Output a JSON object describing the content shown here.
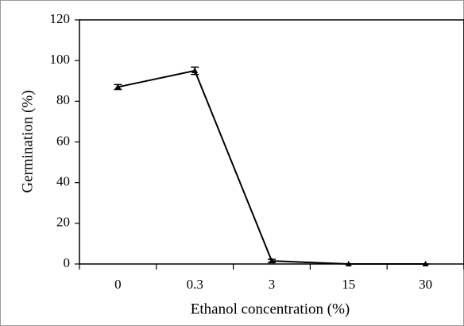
{
  "chart_data": {
    "type": "line",
    "x_label": "Ethanol concentration (%)",
    "y_label": "Germination (%)",
    "categories": [
      "0",
      "0.3",
      "3",
      "15",
      "30"
    ],
    "series": [
      {
        "color": "#000000",
        "values": [
          87,
          95,
          1.5,
          0,
          0
        ],
        "errors": [
          1.2,
          1.8,
          0.8,
          0,
          0
        ]
      }
    ],
    "ylim": [
      0,
      120
    ],
    "yticks": [
      0,
      20,
      40,
      60,
      80,
      100,
      120
    ],
    "grid": false
  }
}
